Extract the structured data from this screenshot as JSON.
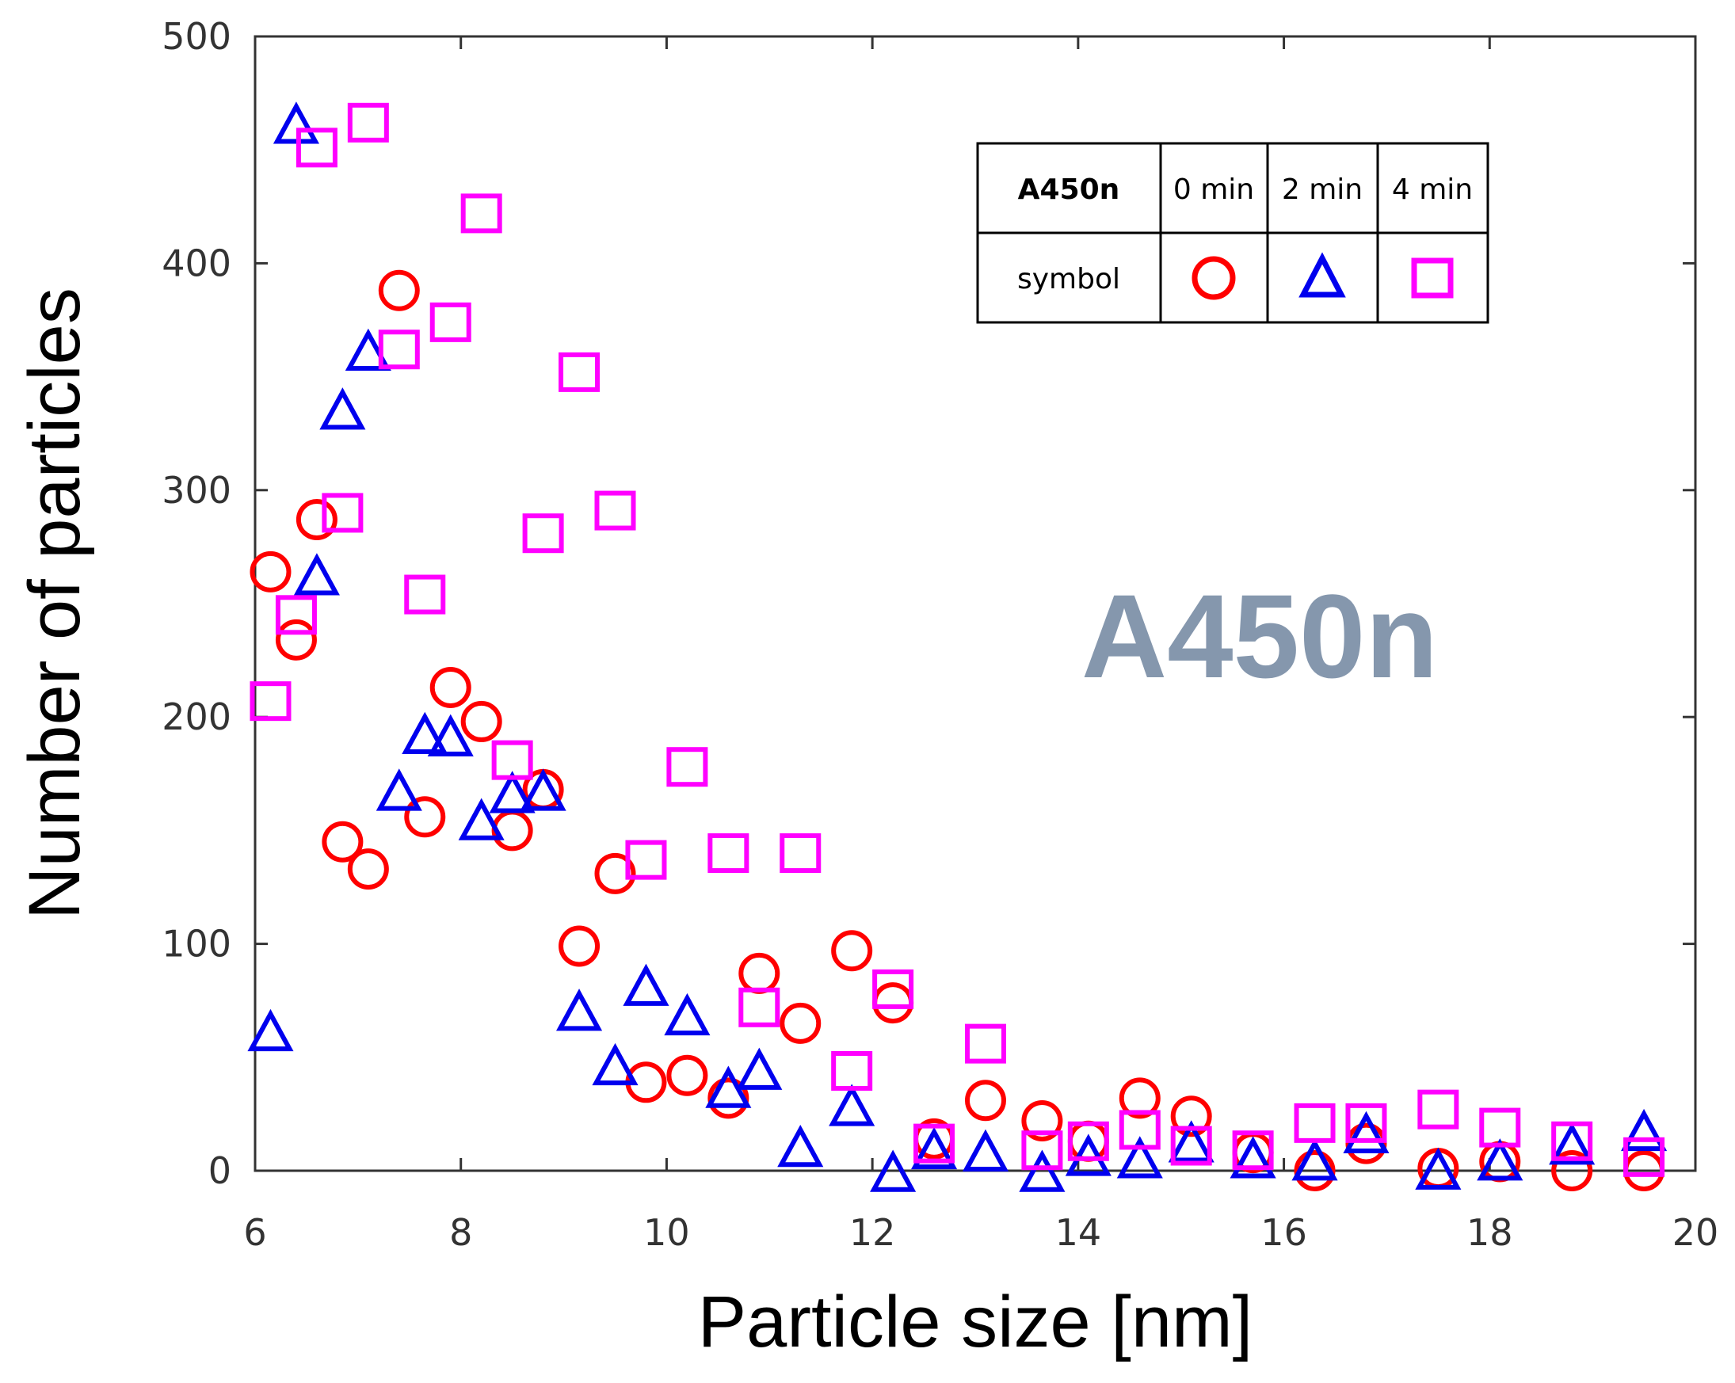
{
  "chart_data": {
    "type": "scatter",
    "title": "",
    "xlabel": "Particle size [nm]",
    "ylabel": "Number of particles",
    "xlim": [
      6,
      20
    ],
    "ylim": [
      0,
      500
    ],
    "xticks": [
      6,
      8,
      10,
      12,
      14,
      16,
      18,
      20
    ],
    "yticks": [
      0,
      100,
      200,
      300,
      400,
      500
    ],
    "annotation": "A450n",
    "legend": {
      "header": "A450n",
      "row_label": "symbol",
      "placement": "top-right",
      "entries": [
        "0 min",
        "2 min",
        "4 min"
      ]
    },
    "series": [
      {
        "name": "0 min",
        "marker": "circle",
        "color": "#ff0000",
        "points": [
          [
            6.15,
            264
          ],
          [
            6.4,
            234
          ],
          [
            6.6,
            287
          ],
          [
            6.85,
            145
          ],
          [
            7.1,
            133
          ],
          [
            7.4,
            388
          ],
          [
            7.65,
            156
          ],
          [
            7.9,
            213
          ],
          [
            8.2,
            198
          ],
          [
            8.5,
            150
          ],
          [
            8.8,
            168
          ],
          [
            9.15,
            99
          ],
          [
            9.5,
            131
          ],
          [
            9.8,
            39
          ],
          [
            10.2,
            42
          ],
          [
            10.6,
            32
          ],
          [
            10.9,
            87
          ],
          [
            11.3,
            65
          ],
          [
            11.8,
            97
          ],
          [
            12.2,
            74
          ],
          [
            12.6,
            14
          ],
          [
            13.1,
            31
          ],
          [
            13.65,
            22
          ],
          [
            14.1,
            13
          ],
          [
            14.6,
            32
          ],
          [
            15.1,
            24
          ],
          [
            15.7,
            8
          ],
          [
            16.3,
            0
          ],
          [
            16.8,
            12
          ],
          [
            17.5,
            1
          ],
          [
            18.1,
            4
          ],
          [
            18.8,
            0
          ],
          [
            19.5,
            0
          ]
        ]
      },
      {
        "name": "2 min",
        "marker": "triangle",
        "color": "#0000ee",
        "points": [
          [
            6.15,
            60
          ],
          [
            6.4,
            460
          ],
          [
            6.6,
            261
          ],
          [
            6.85,
            334
          ],
          [
            7.1,
            360
          ],
          [
            7.4,
            166
          ],
          [
            7.65,
            191
          ],
          [
            7.9,
            190
          ],
          [
            8.2,
            153
          ],
          [
            8.5,
            165
          ],
          [
            8.8,
            166
          ],
          [
            9.15,
            69
          ],
          [
            9.5,
            45
          ],
          [
            9.8,
            80
          ],
          [
            10.2,
            67
          ],
          [
            10.6,
            35
          ],
          [
            10.9,
            43
          ],
          [
            11.3,
            9
          ],
          [
            11.8,
            27
          ],
          [
            12.2,
            -2
          ],
          [
            12.6,
            8
          ],
          [
            13.1,
            7
          ],
          [
            13.65,
            -2
          ],
          [
            14.1,
            5
          ],
          [
            14.6,
            4
          ],
          [
            15.1,
            11
          ],
          [
            15.7,
            4
          ],
          [
            16.3,
            3
          ],
          [
            16.8,
            15
          ],
          [
            17.5,
            -1
          ],
          [
            18.1,
            3
          ],
          [
            18.8,
            10
          ],
          [
            19.5,
            16
          ]
        ]
      },
      {
        "name": "4 min",
        "marker": "square",
        "color": "#ff00ff",
        "points": [
          [
            6.15,
            207
          ],
          [
            6.4,
            245
          ],
          [
            6.6,
            451
          ],
          [
            6.85,
            290
          ],
          [
            7.1,
            462
          ],
          [
            7.4,
            362
          ],
          [
            7.65,
            254
          ],
          [
            7.9,
            374
          ],
          [
            8.2,
            422
          ],
          [
            8.5,
            181
          ],
          [
            8.8,
            281
          ],
          [
            9.15,
            352
          ],
          [
            9.5,
            291
          ],
          [
            9.8,
            137
          ],
          [
            10.2,
            178
          ],
          [
            10.6,
            140
          ],
          [
            10.9,
            72
          ],
          [
            11.3,
            140
          ],
          [
            11.8,
            44
          ],
          [
            12.2,
            80
          ],
          [
            12.6,
            12
          ],
          [
            13.1,
            56
          ],
          [
            13.65,
            9
          ],
          [
            14.1,
            13
          ],
          [
            14.6,
            18
          ],
          [
            15.1,
            11
          ],
          [
            15.7,
            9
          ],
          [
            16.3,
            21
          ],
          [
            16.8,
            21
          ],
          [
            17.5,
            27
          ],
          [
            18.1,
            19
          ],
          [
            18.8,
            13
          ],
          [
            19.5,
            6
          ]
        ]
      }
    ]
  }
}
